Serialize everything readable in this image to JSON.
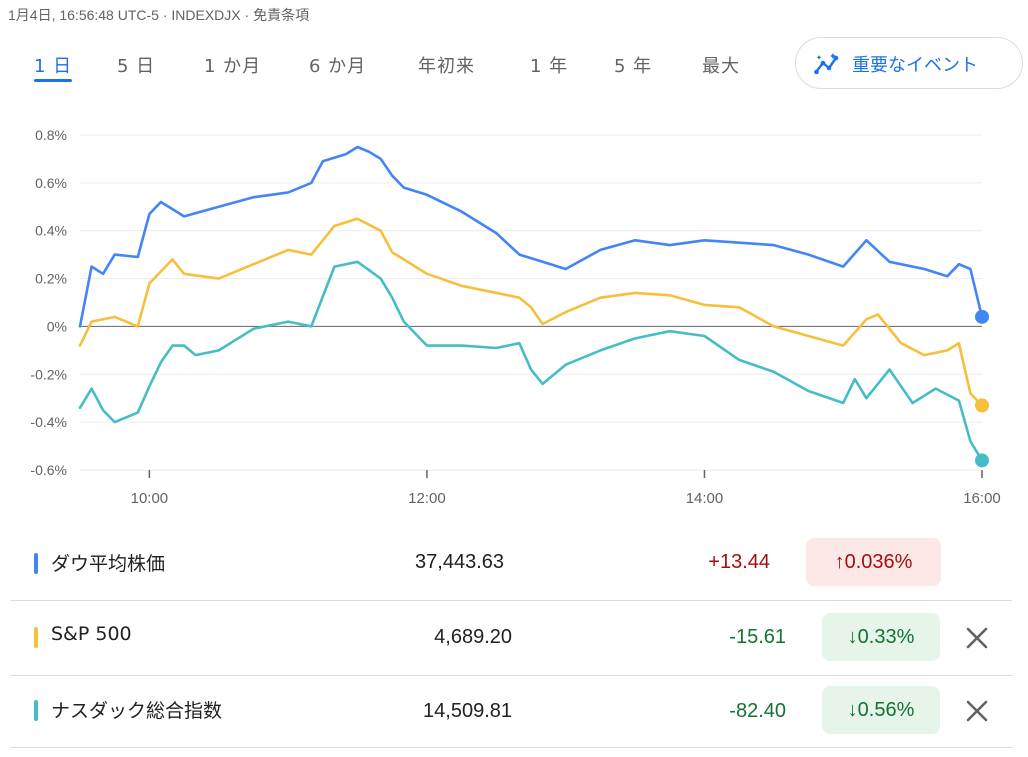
{
  "header": {
    "text": "1月4日, 16:56:48 UTC-5 · INDEXDJX · 免責条項"
  },
  "tabs": [
    {
      "label": "1 日",
      "active": true
    },
    {
      "label": "5 日",
      "active": false
    },
    {
      "label": "1 か月",
      "active": false
    },
    {
      "label": "6 か月",
      "active": false
    },
    {
      "label": "年初来",
      "active": false
    },
    {
      "label": "1 年",
      "active": false
    },
    {
      "label": "5 年",
      "active": false
    },
    {
      "label": "最大",
      "active": false
    }
  ],
  "events_button": {
    "label": "重要なイベント",
    "icon": "insights-icon"
  },
  "colors": {
    "dow": "#4285f4",
    "sp": "#f6bf3c",
    "nasdaq": "#46bdc6",
    "up_text": "#a50e0e",
    "down_text": "#137333",
    "up_bg": "#fce8e6",
    "down_bg": "#e6f4ea"
  },
  "chart_data": {
    "type": "line",
    "title": "",
    "xlabel": "",
    "ylabel": "",
    "ylim": [
      -0.6,
      0.8
    ],
    "xlim": [
      "09:30",
      "16:00"
    ],
    "y_ticks": [
      0.8,
      0.6,
      0.4,
      0.2,
      0,
      -0.2,
      -0.4,
      -0.6
    ],
    "y_tick_labels": [
      "0.8%",
      "0.6%",
      "0.4%",
      "0.2%",
      "0%",
      "-0.2%",
      "-0.4%",
      "-0.6%"
    ],
    "x_ticks": [
      "10:00",
      "12:00",
      "14:00",
      "16:00"
    ],
    "grid": true,
    "baseline": 0,
    "series": [
      {
        "name": "ダウ平均株価",
        "x": [
          "09:30",
          "09:35",
          "09:40",
          "09:45",
          "09:55",
          "10:00",
          "10:05",
          "10:15",
          "10:30",
          "10:45",
          "11:00",
          "11:10",
          "11:15",
          "11:25",
          "11:30",
          "11:35",
          "11:40",
          "11:45",
          "11:50",
          "12:00",
          "12:15",
          "12:30",
          "12:40",
          "12:50",
          "13:00",
          "13:15",
          "13:30",
          "13:45",
          "14:00",
          "14:15",
          "14:30",
          "14:45",
          "15:00",
          "15:10",
          "15:20",
          "15:35",
          "15:45",
          "15:50",
          "15:55",
          "16:00"
        ],
        "values": [
          0.0,
          0.25,
          0.22,
          0.3,
          0.29,
          0.47,
          0.52,
          0.46,
          0.5,
          0.54,
          0.56,
          0.6,
          0.69,
          0.72,
          0.75,
          0.73,
          0.7,
          0.63,
          0.58,
          0.55,
          0.48,
          0.39,
          0.3,
          0.27,
          0.24,
          0.32,
          0.36,
          0.34,
          0.36,
          0.35,
          0.34,
          0.3,
          0.25,
          0.36,
          0.27,
          0.24,
          0.21,
          0.26,
          0.24,
          0.04
        ]
      },
      {
        "name": "S&P 500",
        "x": [
          "09:30",
          "09:35",
          "09:45",
          "09:55",
          "10:00",
          "10:10",
          "10:15",
          "10:30",
          "10:45",
          "11:00",
          "11:10",
          "11:20",
          "11:30",
          "11:40",
          "11:45",
          "11:50",
          "12:00",
          "12:15",
          "12:30",
          "12:40",
          "12:45",
          "12:50",
          "13:00",
          "13:15",
          "13:30",
          "13:45",
          "14:00",
          "14:15",
          "14:30",
          "14:45",
          "15:00",
          "15:10",
          "15:15",
          "15:25",
          "15:35",
          "15:45",
          "15:50",
          "15:55",
          "16:00"
        ],
        "values": [
          -0.08,
          0.02,
          0.04,
          0.0,
          0.18,
          0.28,
          0.22,
          0.2,
          0.26,
          0.32,
          0.3,
          0.42,
          0.45,
          0.4,
          0.31,
          0.28,
          0.22,
          0.17,
          0.14,
          0.12,
          0.08,
          0.01,
          0.06,
          0.12,
          0.14,
          0.13,
          0.09,
          0.08,
          0.0,
          -0.04,
          -0.08,
          0.03,
          0.05,
          -0.07,
          -0.12,
          -0.1,
          -0.07,
          -0.28,
          -0.33
        ]
      },
      {
        "name": "ナスダック総合指数",
        "x": [
          "09:30",
          "09:35",
          "09:40",
          "09:45",
          "09:55",
          "10:00",
          "10:05",
          "10:10",
          "10:15",
          "10:20",
          "10:30",
          "10:45",
          "11:00",
          "11:10",
          "11:20",
          "11:30",
          "11:40",
          "11:45",
          "11:50",
          "12:00",
          "12:15",
          "12:30",
          "12:40",
          "12:45",
          "12:50",
          "13:00",
          "13:15",
          "13:30",
          "13:45",
          "14:00",
          "14:15",
          "14:30",
          "14:45",
          "15:00",
          "15:05",
          "15:10",
          "15:20",
          "15:30",
          "15:40",
          "15:50",
          "15:55",
          "16:00"
        ],
        "values": [
          -0.34,
          -0.26,
          -0.35,
          -0.4,
          -0.36,
          -0.25,
          -0.15,
          -0.08,
          -0.08,
          -0.12,
          -0.1,
          -0.01,
          0.02,
          0.0,
          0.25,
          0.27,
          0.2,
          0.12,
          0.02,
          -0.08,
          -0.08,
          -0.09,
          -0.07,
          -0.18,
          -0.24,
          -0.16,
          -0.1,
          -0.05,
          -0.02,
          -0.04,
          -0.14,
          -0.19,
          -0.27,
          -0.32,
          -0.22,
          -0.3,
          -0.18,
          -0.32,
          -0.26,
          -0.31,
          -0.48,
          -0.56
        ]
      }
    ]
  },
  "rows": [
    {
      "key": "dow",
      "name": "ダウ平均株価",
      "value": "37,443.63",
      "change": "+13.44",
      "pct": "↑0.036%",
      "direction": "up",
      "closable": false
    },
    {
      "key": "sp",
      "name": "S&P 500",
      "value": "4,689.20",
      "change": "-15.61",
      "pct": "↓0.33%",
      "direction": "down",
      "closable": true
    },
    {
      "key": "nasdaq",
      "name": "ナスダック総合指数",
      "value": "14,509.81",
      "change": "-82.40",
      "pct": "↓0.56%",
      "direction": "down",
      "closable": true
    }
  ]
}
